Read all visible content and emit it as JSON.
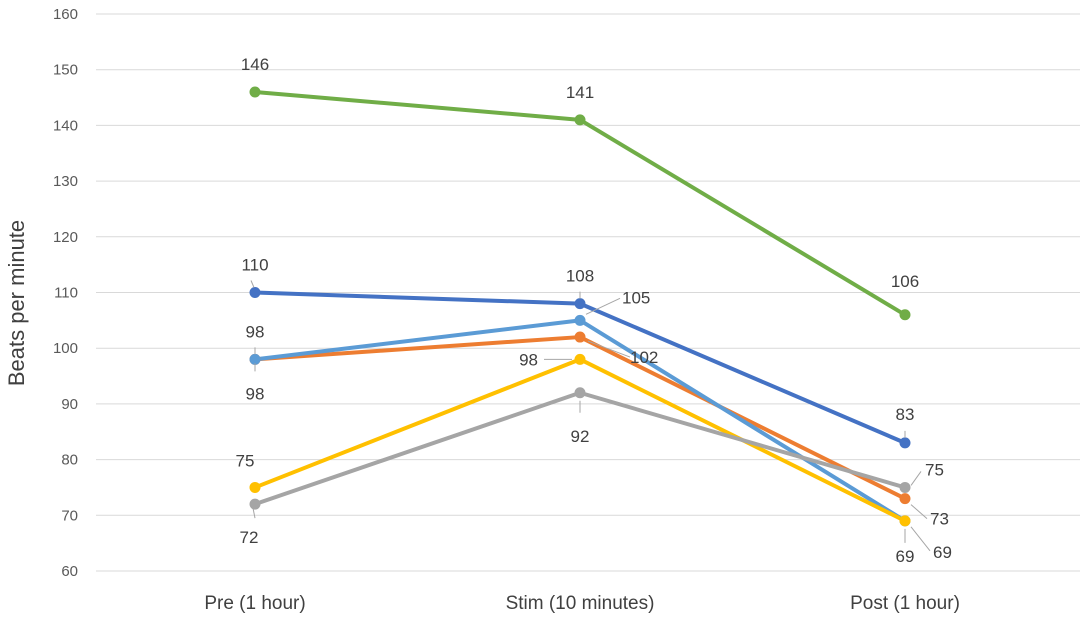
{
  "chart_data": {
    "type": "line",
    "ylabel": "Beats per minute",
    "xlabel": "",
    "title": "",
    "ylim": [
      60,
      160
    ],
    "ytick_step": 10,
    "yticks": [
      "60",
      "70",
      "80",
      "90",
      "100",
      "110",
      "120",
      "130",
      "140",
      "150",
      "160"
    ],
    "grid": true,
    "legend": "none",
    "categories": [
      "Pre (1 hour)",
      "Stim (10 minutes)",
      "Post (1 hour)"
    ],
    "series": [
      {
        "color": "#70ad47",
        "values": [
          146,
          141,
          106
        ],
        "labels": [
          "146",
          "141",
          "106"
        ]
      },
      {
        "color": "#4472c4",
        "values": [
          110,
          108,
          83
        ],
        "labels": [
          "110",
          "108",
          "83"
        ]
      },
      {
        "color": "#ed7d31",
        "values": [
          98,
          102,
          73
        ],
        "labels": [
          "98",
          "102",
          "73"
        ]
      },
      {
        "color": "#5b9bd5",
        "values": [
          98,
          105,
          69
        ],
        "labels": [
          "98",
          "105",
          "69"
        ]
      },
      {
        "color": "#ffc000",
        "values": [
          75,
          98,
          69
        ],
        "labels": [
          "75",
          "98",
          "69"
        ]
      },
      {
        "color": "#a5a5a5",
        "values": [
          72,
          92,
          75
        ],
        "labels": [
          "72",
          "92",
          "75"
        ]
      }
    ]
  }
}
